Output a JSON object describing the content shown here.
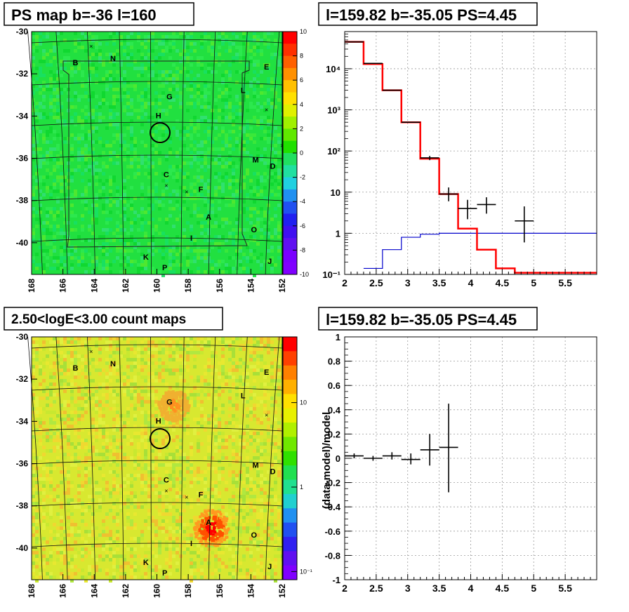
{
  "colors": {
    "model_line": "#ff0000",
    "data_marker": "#000000",
    "blue_line": "#0000cc",
    "frame": "#000000"
  },
  "panels": {
    "ps_map": {
      "title": "PS map b=-36 l=160",
      "colorbar_ticks": [
        "10",
        "8",
        "6",
        "4",
        "2",
        "0",
        "-2",
        "-4",
        "-6",
        "-8",
        "-10"
      ],
      "x_ticks": [
        "168",
        "166",
        "164",
        "162",
        "160",
        "158",
        "156",
        "154",
        "152"
      ],
      "y_ticks": [
        "-30",
        "-32",
        "-34",
        "-36",
        "-38",
        "-40"
      ]
    },
    "spectrum": {
      "title": "l=159.82 b=-35.05 PS=4.45"
    },
    "count_map": {
      "title": "2.50<logE<3.00 count maps",
      "colorbar_ticks": [
        "10",
        "1",
        "10⁻¹"
      ],
      "x_ticks": [
        "168",
        "166",
        "164",
        "162",
        "160",
        "158",
        "156",
        "154",
        "152"
      ],
      "y_ticks": [
        "-30",
        "-32",
        "-34",
        "-36",
        "-38",
        "-40"
      ]
    },
    "residual": {
      "title": "l=159.82 b=-35.05 PS=4.45"
    }
  },
  "source_labels": [
    {
      "id": "B",
      "name": "B"
    },
    {
      "id": "N",
      "name": "N"
    },
    {
      "id": "E",
      "name": "E"
    },
    {
      "id": "G",
      "name": "G"
    },
    {
      "id": "L",
      "name": "L"
    },
    {
      "id": "H",
      "name": "H"
    },
    {
      "id": "M",
      "name": "M"
    },
    {
      "id": "D",
      "name": "D"
    },
    {
      "id": "C",
      "name": "C"
    },
    {
      "id": "F",
      "name": "F"
    },
    {
      "id": "A",
      "name": "A"
    },
    {
      "id": "O",
      "name": "O"
    },
    {
      "id": "I",
      "name": "I"
    },
    {
      "id": "K",
      "name": "K"
    },
    {
      "id": "J",
      "name": "J"
    },
    {
      "id": "P",
      "name": "P"
    }
  ],
  "chart_data": [
    {
      "type": "heatmap",
      "title": "PS map b=-36 l=160",
      "xlim": [
        168,
        152
      ],
      "ylim": [
        -41.5,
        -30
      ],
      "zlim": [
        -10,
        10
      ],
      "x_ticks": [
        168,
        166,
        164,
        162,
        160,
        158,
        156,
        154,
        152
      ],
      "y_ticks": [
        -30,
        -32,
        -34,
        -36,
        -38,
        -40
      ],
      "sources": [
        {
          "name": "B",
          "l": 165.2,
          "b": -31.6
        },
        {
          "name": "N",
          "l": 162.8,
          "b": -31.4
        },
        {
          "name": "E",
          "l": 153.0,
          "b": -31.8
        },
        {
          "name": "G",
          "l": 159.2,
          "b": -33.2
        },
        {
          "name": "L",
          "l": 154.5,
          "b": -32.9
        },
        {
          "name": "H",
          "l": 159.9,
          "b": -34.1
        },
        {
          "name": "M",
          "l": 153.7,
          "b": -36.2
        },
        {
          "name": "D",
          "l": 152.6,
          "b": -36.5
        },
        {
          "name": "C",
          "l": 159.4,
          "b": -36.9
        },
        {
          "name": "F",
          "l": 157.2,
          "b": -37.6
        },
        {
          "name": "A",
          "l": 156.7,
          "b": -38.9
        },
        {
          "name": "O",
          "l": 153.8,
          "b": -39.5
        },
        {
          "name": "I",
          "l": 157.8,
          "b": -39.9
        },
        {
          "name": "K",
          "l": 160.7,
          "b": -40.8
        },
        {
          "name": "J",
          "l": 152.8,
          "b": -41.0
        },
        {
          "name": "P",
          "l": 159.5,
          "b": -41.3
        }
      ],
      "circle": {
        "l": 159.82,
        "b": -35.05
      }
    },
    {
      "type": "line",
      "title": "l=159.82 b=-35.05 PS=4.45",
      "xlim": [
        2,
        6
      ],
      "ylim": [
        0.1,
        80000
      ],
      "ylog": true,
      "x_ticks": [
        2,
        2.5,
        3,
        3.5,
        4,
        4.5,
        5,
        5.5
      ],
      "y_ticks": [
        {
          "v": 0.1,
          "label": "10⁻¹"
        },
        {
          "v": 1,
          "label": "1"
        },
        {
          "v": 10,
          "label": "10"
        },
        {
          "v": 100,
          "label": "10²"
        },
        {
          "v": 1000,
          "label": "10³"
        },
        {
          "v": 10000,
          "label": "10⁴"
        }
      ],
      "grid": true,
      "series": [
        {
          "step_edges": [
            2,
            2.3,
            2.6,
            2.9,
            3.2,
            3.5,
            3.8,
            4.1,
            4.4,
            4.7,
            5.0,
            6.0
          ],
          "values": [
            45000,
            13000,
            3000,
            500,
            65,
            9,
            1.3,
            0.4,
            0.14,
            0.11,
            0.11
          ]
        },
        {
          "step_edges": [
            2.3,
            2.6,
            2.9,
            3.2,
            3.5,
            3.8,
            6.0
          ],
          "values": [
            0.14,
            0.4,
            0.8,
            0.95,
            1.0,
            1.0
          ]
        },
        {
          "points": [
            {
              "x": 2.15,
              "y": 45000,
              "xerr": 0.15,
              "ylo": 45000,
              "yhi": 45000
            },
            {
              "x": 2.45,
              "y": 13500,
              "xerr": 0.15,
              "ylo": 13500,
              "yhi": 13500
            },
            {
              "x": 2.75,
              "y": 3000,
              "xerr": 0.15,
              "ylo": 3000,
              "yhi": 3000
            },
            {
              "x": 3.05,
              "y": 500,
              "xerr": 0.15,
              "ylo": 490,
              "yhi": 510
            },
            {
              "x": 3.35,
              "y": 68,
              "xerr": 0.15,
              "ylo": 60,
              "yhi": 76
            },
            {
              "x": 3.65,
              "y": 9,
              "xerr": 0.15,
              "ylo": 6,
              "yhi": 13
            },
            {
              "x": 3.95,
              "y": 4,
              "xerr": 0.15,
              "ylo": 2.2,
              "yhi": 6.5
            },
            {
              "x": 4.25,
              "y": 5,
              "xerr": 0.15,
              "ylo": 3,
              "yhi": 7.5
            },
            {
              "x": 4.85,
              "y": 2,
              "xerr": 0.15,
              "ylo": 0.6,
              "yhi": 4.5
            }
          ]
        }
      ]
    },
    {
      "type": "heatmap",
      "title": "2.50<logE<3.00 count maps",
      "xlim": [
        168,
        152
      ],
      "ylim": [
        -41.5,
        -30
      ],
      "zlog": true,
      "zlim": [
        0.08,
        60
      ],
      "x_ticks": [
        168,
        166,
        164,
        162,
        160,
        158,
        156,
        154,
        152
      ],
      "y_ticks": [
        -30,
        -32,
        -34,
        -36,
        -38,
        -40
      ],
      "hotspots": [
        {
          "l": 156.6,
          "b": -39.0
        },
        {
          "l": 159.0,
          "b": -33.2
        }
      ],
      "circle": {
        "l": 159.82,
        "b": -35.05
      }
    },
    {
      "type": "scatter",
      "title": "l=159.82 b=-35.05 PS=4.45",
      "ylabel": "(data-model)/model",
      "xlim": [
        2,
        6
      ],
      "ylim": [
        -1,
        1
      ],
      "x_ticks": [
        2,
        2.5,
        3,
        3.5,
        4,
        4.5,
        5,
        5.5
      ],
      "y_ticks": [
        -1,
        -0.8,
        -0.6,
        -0.4,
        -0.2,
        0,
        0.2,
        0.4,
        0.6,
        0.8,
        1
      ],
      "grid": true,
      "points": [
        {
          "x": 2.15,
          "y": 0.02,
          "xerr": 0.15,
          "ylo": 0.0,
          "yhi": 0.04
        },
        {
          "x": 2.45,
          "y": 0.0,
          "xerr": 0.15,
          "ylo": -0.02,
          "yhi": 0.02
        },
        {
          "x": 2.75,
          "y": 0.02,
          "xerr": 0.15,
          "ylo": -0.01,
          "yhi": 0.05
        },
        {
          "x": 3.05,
          "y": -0.01,
          "xerr": 0.15,
          "ylo": -0.05,
          "yhi": 0.04
        },
        {
          "x": 3.35,
          "y": 0.07,
          "xerr": 0.15,
          "ylo": -0.06,
          "yhi": 0.2
        },
        {
          "x": 3.65,
          "y": 0.09,
          "xerr": 0.15,
          "ylo": -0.28,
          "yhi": 0.45
        }
      ]
    }
  ]
}
